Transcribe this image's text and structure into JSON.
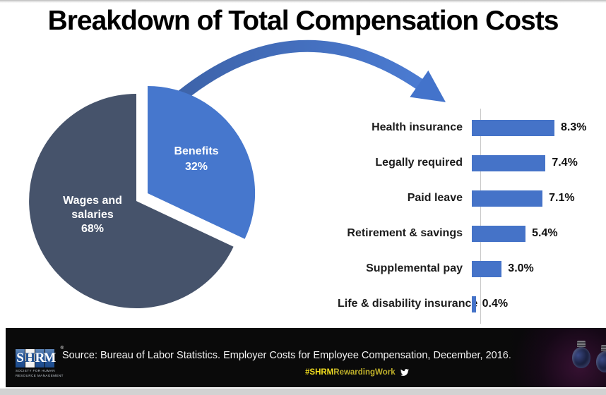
{
  "page": {
    "title": "Breakdown of Total Compensation Costs"
  },
  "chart_data": [
    {
      "type": "pie",
      "title": "Total compensation split",
      "slices": [
        {
          "label": "Wages and salaries",
          "value": 68,
          "pct_label": "68%",
          "label_lines": [
            "Wages and",
            "salaries"
          ],
          "color": "#46536B"
        },
        {
          "label": "Benefits",
          "value": 32,
          "pct_label": "32%",
          "color": "#4677CD"
        }
      ],
      "exploded_slice": "Benefits",
      "legend": "labels inside slices"
    },
    {
      "type": "bar",
      "orientation": "horizontal",
      "categories": [
        "Health insurance",
        "Legally required",
        "Paid leave",
        "Retirement & savings",
        "Supplemental pay",
        "Life & disability insurance"
      ],
      "values": [
        8.3,
        7.4,
        7.1,
        5.4,
        3.0,
        0.4
      ],
      "value_labels": [
        "8.3%",
        "7.4%",
        "7.1%",
        "5.4%",
        "3.0%",
        "0.4%"
      ],
      "bar_color": "#4573C8",
      "xlim": [
        0,
        9
      ],
      "grid": false,
      "value_label_position": "end-of-bar"
    }
  ],
  "footer": {
    "logo": {
      "letters": [
        "S",
        "H",
        "R",
        "M"
      ],
      "registered": "®",
      "subtext_line1": "SOCIETY FOR HUMAN",
      "subtext_line2": "RESOURCE MANAGEMENT"
    },
    "source_text": "Source: Bureau of Labor Statistics. Employer Costs for Employee Compensation, December, 2016.",
    "hashtag_bold": "#SHRM",
    "hashtag_rest": "RewardingWork",
    "twitter_icon_name": "twitter-bird-icon"
  },
  "colors": {
    "pie_dark": "#46536B",
    "pie_blue": "#4677CD",
    "bar_blue": "#4573C8",
    "arrow_start": "#3D63A9",
    "arrow_end": "#4B7BD2",
    "hashtag_yellow": "#F2DE1E",
    "footer_bg": "#0A0A0A"
  }
}
